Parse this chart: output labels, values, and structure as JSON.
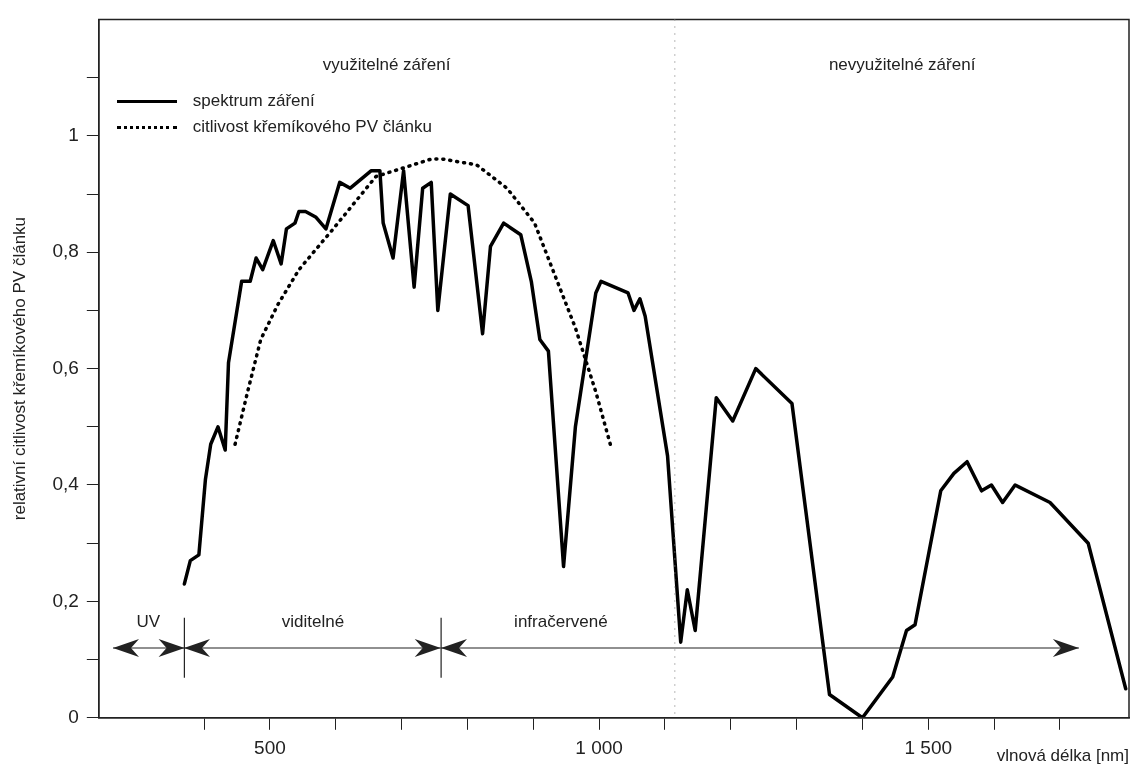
{
  "chart_data": {
    "type": "line",
    "xlabel": "vlnová délka [nm]",
    "ylabel": "relativní citlivost křemíkového PV článku",
    "xlim": [
      240,
      1805
    ],
    "ylim": [
      0,
      1.2
    ],
    "xticks": [
      {
        "value": 400,
        "label": null
      },
      {
        "value": 500,
        "label": "500"
      },
      {
        "value": 600,
        "label": null
      },
      {
        "value": 700,
        "label": null
      },
      {
        "value": 800,
        "label": null
      },
      {
        "value": 900,
        "label": null
      },
      {
        "value": 1000,
        "label": "1 000"
      },
      {
        "value": 1100,
        "label": null
      },
      {
        "value": 1200,
        "label": null
      },
      {
        "value": 1300,
        "label": null
      },
      {
        "value": 1400,
        "label": null
      },
      {
        "value": 1500,
        "label": "1 500"
      },
      {
        "value": 1600,
        "label": null
      },
      {
        "value": 1700,
        "label": null
      }
    ],
    "yticks": [
      {
        "value": 0,
        "label": "0"
      },
      {
        "value": 0.1,
        "label": null
      },
      {
        "value": 0.2,
        "label": "0,2"
      },
      {
        "value": 0.3,
        "label": null
      },
      {
        "value": 0.4,
        "label": "0,4"
      },
      {
        "value": 0.5,
        "label": null
      },
      {
        "value": 0.6,
        "label": "0,6"
      },
      {
        "value": 0.7,
        "label": null
      },
      {
        "value": 0.8,
        "label": "0,8"
      },
      {
        "value": 0.9,
        "label": null
      },
      {
        "value": 1,
        "label": "1"
      },
      {
        "value": 1.1,
        "label": null
      }
    ],
    "grid": false,
    "legend": "top left",
    "marker": "none",
    "series": [
      {
        "name": "spektrum záření",
        "color": "#000000",
        "line_style": "solid",
        "x": [
          370,
          379,
          392,
          402,
          410,
          421,
          432,
          437,
          457,
          470,
          479,
          489,
          505,
          517,
          525,
          538,
          544,
          554,
          570,
          585,
          606,
          622,
          654,
          667,
          672,
          687,
          703,
          719,
          732,
          745,
          755,
          774,
          801,
          823,
          835,
          855,
          881,
          897,
          910,
          923,
          946,
          964,
          995,
          1003,
          1044,
          1053,
          1062,
          1070,
          1104,
          1124,
          1134,
          1146,
          1178,
          1203,
          1238,
          1293,
          1350,
          1400,
          1446,
          1467,
          1480,
          1519,
          1539,
          1559,
          1581,
          1596,
          1613,
          1632,
          1685,
          1743,
          1800
        ],
        "values": [
          0.23,
          0.27,
          0.28,
          0.41,
          0.47,
          0.5,
          0.46,
          0.61,
          0.75,
          0.75,
          0.79,
          0.77,
          0.82,
          0.78,
          0.84,
          0.85,
          0.87,
          0.87,
          0.86,
          0.84,
          0.92,
          0.91,
          0.94,
          0.94,
          0.85,
          0.79,
          0.94,
          0.74,
          0.91,
          0.92,
          0.7,
          0.9,
          0.88,
          0.66,
          0.81,
          0.85,
          0.83,
          0.75,
          0.65,
          0.63,
          0.26,
          0.5,
          0.73,
          0.75,
          0.73,
          0.7,
          0.72,
          0.69,
          0.45,
          0.13,
          0.22,
          0.15,
          0.55,
          0.51,
          0.6,
          0.54,
          0.04,
          0,
          0.07,
          0.15,
          0.16,
          0.39,
          0.42,
          0.44,
          0.39,
          0.4,
          0.37,
          0.4,
          0.37,
          0.3,
          0.05
        ]
      },
      {
        "name": "citlivost křemíkového PV článku",
        "color": "#000000",
        "line_style": "dotted",
        "x": [
          447,
          466,
          486,
          512,
          544,
          596,
          661,
          745,
          762,
          814,
          860,
          902,
          933,
          964,
          995,
          1017
        ],
        "values": [
          0.47,
          0.56,
          0.65,
          0.71,
          0.77,
          0.84,
          0.93,
          0.96,
          0.96,
          0.95,
          0.91,
          0.85,
          0.76,
          0.67,
          0.56,
          0.47
        ]
      }
    ],
    "ref_lines": [
      {
        "axis": "x",
        "value": 1115,
        "color": "#888888",
        "line_style": "dotted"
      },
      {
        "axis": "x",
        "value": 370,
        "color": "#222222",
        "line_style": "solid"
      },
      {
        "axis": "x",
        "value": 760,
        "color": "#222222",
        "line_style": "solid"
      }
    ],
    "annotations": [
      "využitelné záření",
      "nevyužitelné záření",
      "UV",
      "viditelné",
      "infračervené"
    ]
  }
}
